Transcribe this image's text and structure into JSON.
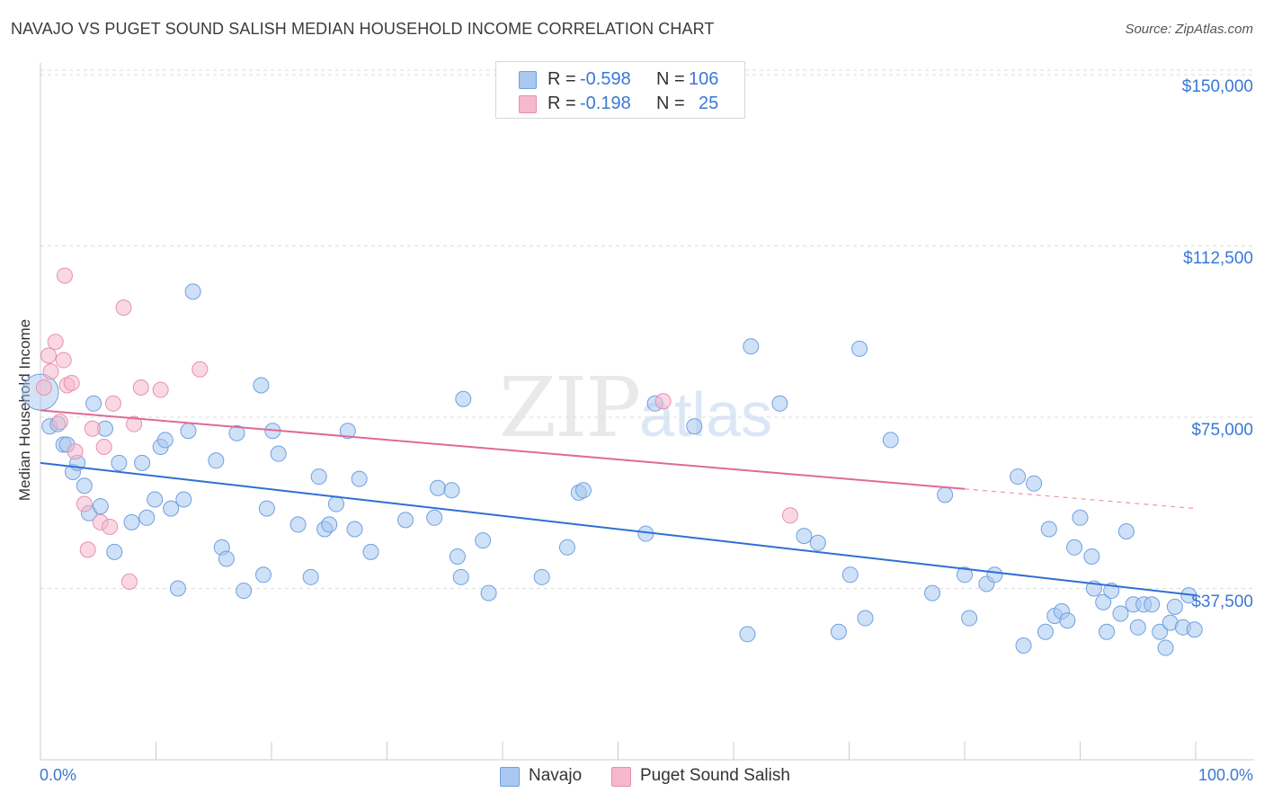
{
  "title": "NAVAJO VS PUGET SOUND SALISH MEDIAN HOUSEHOLD INCOME CORRELATION CHART",
  "source": "Source: ZipAtlas.com",
  "watermark": {
    "part1": "ZIP",
    "part2": "atlas"
  },
  "legend_top": {
    "rows": [
      {
        "r_label": "R =",
        "r_value": "-0.598",
        "n_label": "N =",
        "n_value": "106",
        "color": "#a8c8f0"
      },
      {
        "r_label": "R =",
        "r_value": "-0.198",
        "n_label": "N =",
        "n_value": "25",
        "color": "#f5b8cc"
      }
    ]
  },
  "legend_bottom": [
    {
      "label": "Navajo",
      "color": "#a8c8f0"
    },
    {
      "label": "Puget Sound Salish",
      "color": "#f5b8cc"
    }
  ],
  "chart_data": {
    "type": "scatter",
    "title": "NAVAJO VS PUGET SOUND SALISH MEDIAN HOUSEHOLD INCOME CORRELATION CHART",
    "xlabel": "",
    "ylabel": "Median Household Income",
    "xlim": [
      0,
      100
    ],
    "ylim": [
      0,
      155000
    ],
    "x_tick_labels": [
      "0.0%",
      "100.0%"
    ],
    "y_ticks": [
      37500,
      75000,
      112500,
      150000
    ],
    "y_tick_labels": [
      "$37,500",
      "$75,000",
      "$112,500",
      "$150,000"
    ],
    "grid": true,
    "series": [
      {
        "name": "Navajo",
        "color": "#a8c8f0",
        "stroke": "#6fa0e0",
        "trend": {
          "x0": 0,
          "y0": 65000,
          "x1": 100,
          "y1": 36000,
          "color": "#2f6fd6",
          "dashed_from": null
        },
        "points": [
          [
            0.8,
            73000
          ],
          [
            1.5,
            73500
          ],
          [
            2,
            69000
          ],
          [
            2.3,
            69000
          ],
          [
            2.8,
            63000
          ],
          [
            3.2,
            65000
          ],
          [
            3.8,
            60000
          ],
          [
            4.2,
            54000
          ],
          [
            4.6,
            78000
          ],
          [
            5.2,
            55500
          ],
          [
            5.6,
            72500
          ],
          [
            6.4,
            45500
          ],
          [
            6.8,
            65000
          ],
          [
            7.9,
            52000
          ],
          [
            8.8,
            65000
          ],
          [
            9.2,
            53000
          ],
          [
            9.9,
            57000
          ],
          [
            10.4,
            68500
          ],
          [
            10.8,
            70000
          ],
          [
            11.3,
            55000
          ],
          [
            11.9,
            37500
          ],
          [
            12.4,
            57000
          ],
          [
            12.8,
            72000
          ],
          [
            13.2,
            102500
          ],
          [
            15.2,
            65500
          ],
          [
            15.7,
            46500
          ],
          [
            16.1,
            44000
          ],
          [
            17.0,
            71500
          ],
          [
            17.6,
            37000
          ],
          [
            19.1,
            82000
          ],
          [
            19.3,
            40500
          ],
          [
            19.6,
            55000
          ],
          [
            20.1,
            72000
          ],
          [
            20.6,
            67000
          ],
          [
            22.3,
            51500
          ],
          [
            23.4,
            40000
          ],
          [
            24.1,
            62000
          ],
          [
            24.6,
            50500
          ],
          [
            25.0,
            51500
          ],
          [
            25.6,
            56000
          ],
          [
            26.6,
            72000
          ],
          [
            27.2,
            50500
          ],
          [
            27.6,
            61500
          ],
          [
            28.6,
            45500
          ],
          [
            31.6,
            52500
          ],
          [
            34.1,
            53000
          ],
          [
            34.4,
            59500
          ],
          [
            35.6,
            59000
          ],
          [
            36.1,
            44500
          ],
          [
            36.4,
            40000
          ],
          [
            36.6,
            79000
          ],
          [
            38.3,
            48000
          ],
          [
            38.8,
            36500
          ],
          [
            43.4,
            40000
          ],
          [
            45.6,
            46500
          ],
          [
            46.6,
            58500
          ],
          [
            47.0,
            59000
          ],
          [
            52.4,
            49500
          ],
          [
            53.2,
            78000
          ],
          [
            56.6,
            73000
          ],
          [
            61.2,
            27500
          ],
          [
            61.5,
            90500
          ],
          [
            64.0,
            78000
          ],
          [
            66.1,
            49000
          ],
          [
            67.3,
            47500
          ],
          [
            69.1,
            28000
          ],
          [
            70.1,
            40500
          ],
          [
            70.9,
            90000
          ],
          [
            71.4,
            31000
          ],
          [
            73.6,
            70000
          ],
          [
            77.2,
            36500
          ],
          [
            78.3,
            58000
          ],
          [
            80.0,
            40500
          ],
          [
            80.4,
            31000
          ],
          [
            81.9,
            38500
          ],
          [
            82.6,
            40500
          ],
          [
            84.6,
            62000
          ],
          [
            85.1,
            25000
          ],
          [
            86.0,
            60500
          ],
          [
            87.0,
            28000
          ],
          [
            87.3,
            50500
          ],
          [
            87.8,
            31500
          ],
          [
            88.4,
            32500
          ],
          [
            88.9,
            30500
          ],
          [
            89.5,
            46500
          ],
          [
            90.0,
            53000
          ],
          [
            91.0,
            44500
          ],
          [
            91.2,
            37500
          ],
          [
            92.0,
            34500
          ],
          [
            92.3,
            28000
          ],
          [
            92.7,
            37000
          ],
          [
            93.5,
            32000
          ],
          [
            94.0,
            50000
          ],
          [
            94.6,
            34000
          ],
          [
            95.0,
            29000
          ],
          [
            95.5,
            34000
          ],
          [
            96.2,
            34000
          ],
          [
            96.9,
            28000
          ],
          [
            97.4,
            24500
          ],
          [
            97.8,
            30000
          ],
          [
            98.2,
            33500
          ],
          [
            98.9,
            29000
          ],
          [
            99.4,
            36000
          ],
          [
            99.9,
            28500
          ]
        ],
        "big_points": [
          [
            0.0,
            80500
          ]
        ]
      },
      {
        "name": "Puget Sound Salish",
        "color": "#f5b8cc",
        "stroke": "#e890ae",
        "trend": {
          "x0": 0,
          "y0": 76500,
          "x1": 100,
          "y1": 55000,
          "color": "#e06a94",
          "dashed_from": 80
        },
        "points": [
          [
            0.3,
            81500
          ],
          [
            0.7,
            88500
          ],
          [
            0.9,
            85000
          ],
          [
            1.3,
            91500
          ],
          [
            1.7,
            74000
          ],
          [
            2.0,
            87500
          ],
          [
            2.1,
            106000
          ],
          [
            2.3,
            82000
          ],
          [
            2.7,
            82500
          ],
          [
            3.0,
            67500
          ],
          [
            3.8,
            56000
          ],
          [
            4.1,
            46000
          ],
          [
            4.5,
            72500
          ],
          [
            5.2,
            52000
          ],
          [
            5.5,
            68500
          ],
          [
            6.0,
            51000
          ],
          [
            6.3,
            78000
          ],
          [
            7.2,
            99000
          ],
          [
            7.7,
            39000
          ],
          [
            8.1,
            73500
          ],
          [
            8.7,
            81500
          ],
          [
            10.4,
            81000
          ],
          [
            13.8,
            85500
          ],
          [
            53.9,
            78500
          ],
          [
            64.9,
            53500
          ]
        ]
      }
    ]
  }
}
